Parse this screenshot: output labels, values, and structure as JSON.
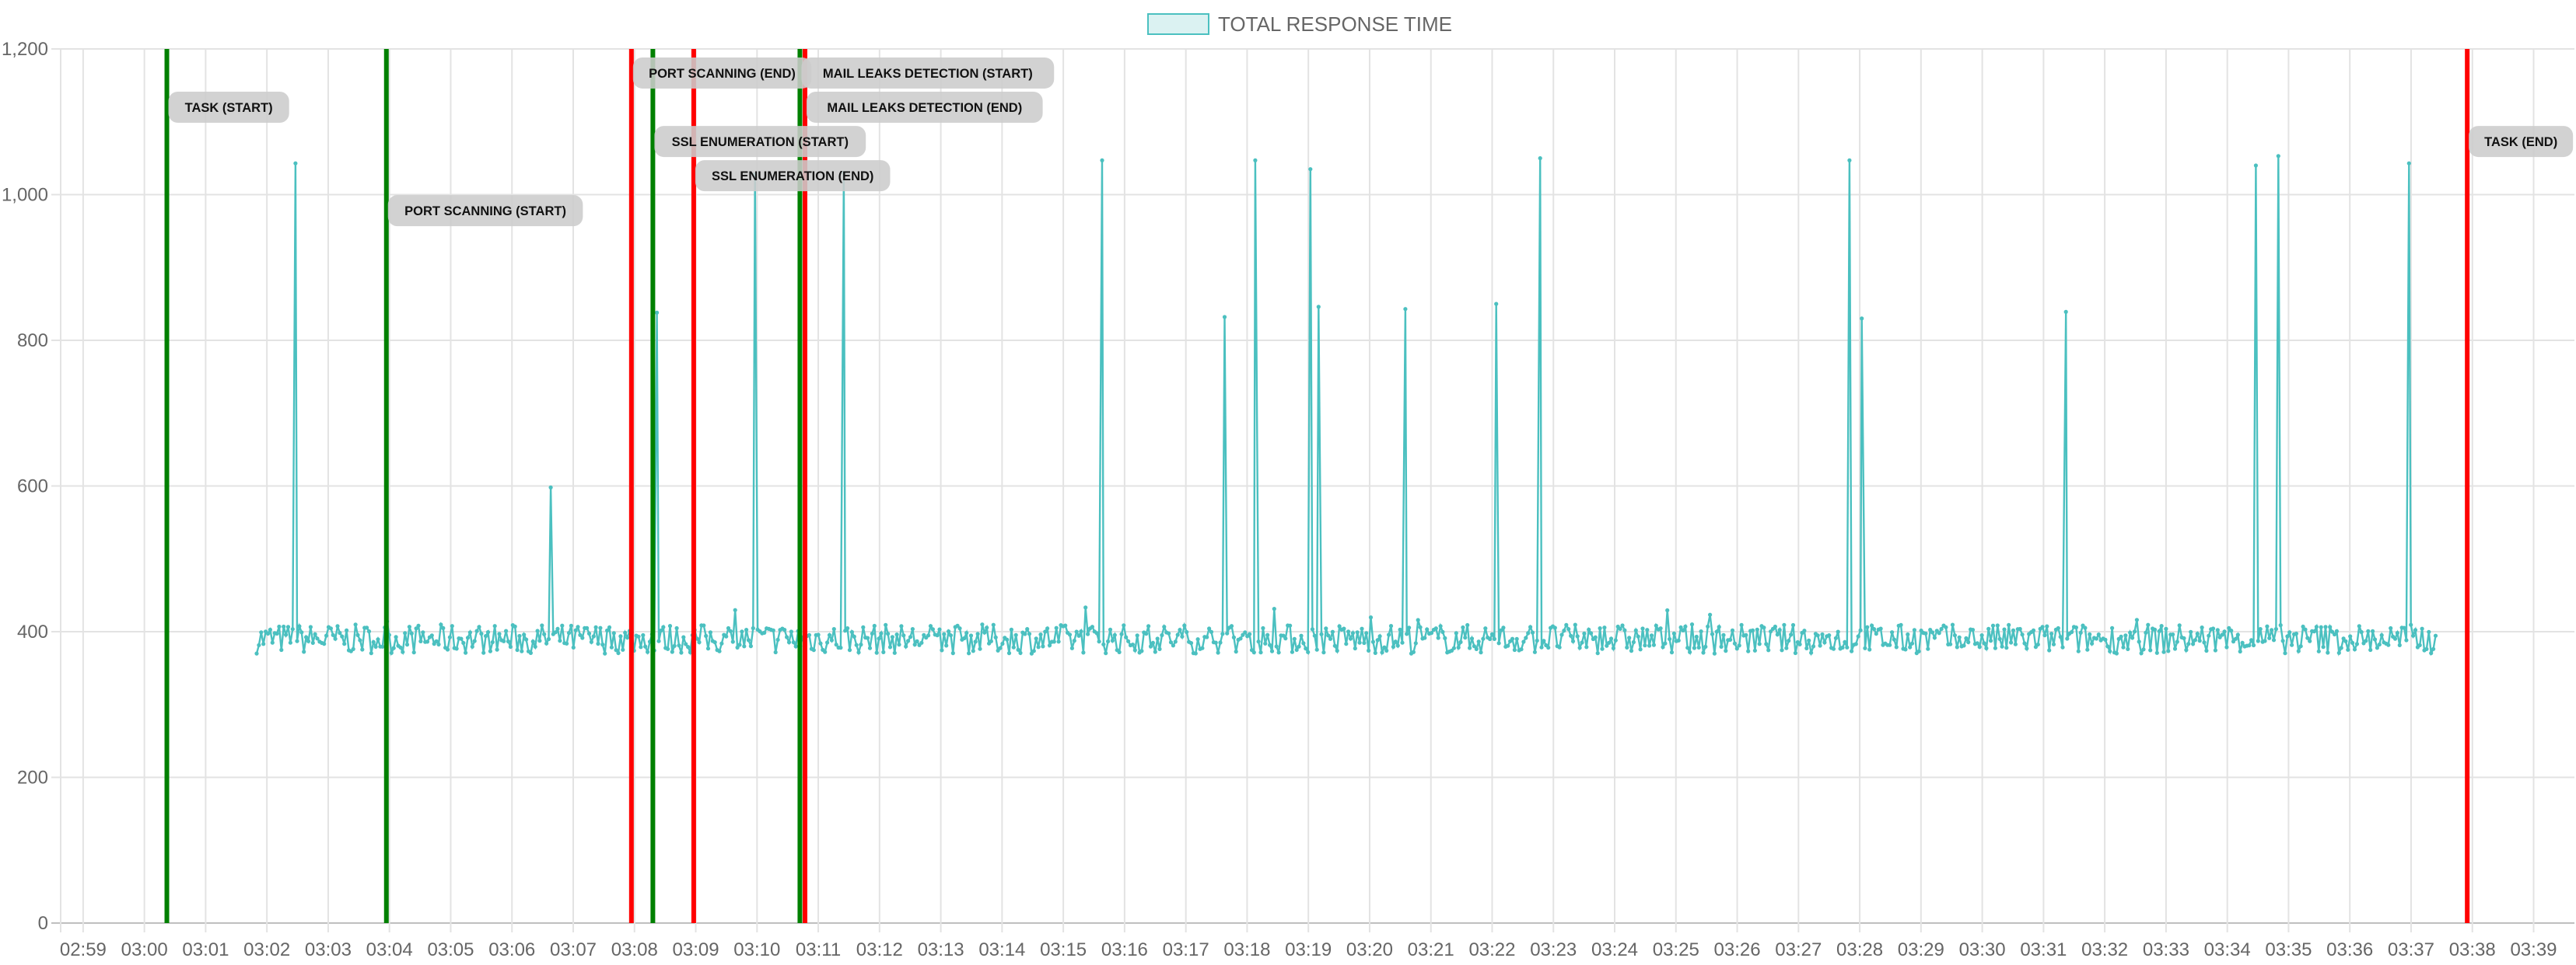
{
  "chart_data": {
    "type": "line",
    "legend": {
      "label": "TOTAL RESPONSE TIME",
      "position": "top-center"
    },
    "series": [
      {
        "name": "TOTAL RESPONSE TIME",
        "color": "#4bc0c0",
        "baseline": 390,
        "x_range": [
          "03:01:50",
          "03:37:25"
        ],
        "spikes": [
          {
            "x": "03:02:28",
            "y": 1043
          },
          {
            "x": "03:06:38",
            "y": 598
          },
          {
            "x": "03:08:22",
            "y": 838
          },
          {
            "x": "03:09:58",
            "y": 1028
          },
          {
            "x": "03:11:25",
            "y": 1030
          },
          {
            "x": "03:15:38",
            "y": 1047
          },
          {
            "x": "03:17:38",
            "y": 832
          },
          {
            "x": "03:18:08",
            "y": 1047
          },
          {
            "x": "03:19:02",
            "y": 1035
          },
          {
            "x": "03:19:10",
            "y": 846
          },
          {
            "x": "03:20:35",
            "y": 843
          },
          {
            "x": "03:22:04",
            "y": 850
          },
          {
            "x": "03:22:47",
            "y": 1050
          },
          {
            "x": "03:27:50",
            "y": 1047
          },
          {
            "x": "03:28:02",
            "y": 830
          },
          {
            "x": "03:31:22",
            "y": 839
          },
          {
            "x": "03:34:28",
            "y": 1040
          },
          {
            "x": "03:34:50",
            "y": 1053
          },
          {
            "x": "03:36:58",
            "y": 1043
          }
        ]
      }
    ],
    "x_axis": {
      "ticks": [
        "02:59",
        "03:00",
        "03:01",
        "03:02",
        "03:03",
        "03:04",
        "03:05",
        "03:06",
        "03:07",
        "03:08",
        "03:09",
        "03:10",
        "03:11",
        "03:12",
        "03:13",
        "03:14",
        "03:15",
        "03:16",
        "03:17",
        "03:18",
        "03:19",
        "03:20",
        "03:21",
        "03:22",
        "03:23",
        "03:24",
        "03:25",
        "03:26",
        "03:27",
        "03:28",
        "03:29",
        "03:30",
        "03:31",
        "03:32",
        "03:33",
        "03:34",
        "03:35",
        "03:36",
        "03:37",
        "03:38",
        "03:39"
      ],
      "range": [
        "02:58:38",
        "03:39:40"
      ]
    },
    "y_axis": {
      "ticks": [
        "0",
        "200",
        "400",
        "600",
        "800",
        "1,000",
        "1,200"
      ],
      "range": [
        0,
        1200
      ]
    },
    "grid": true,
    "annotations": [
      {
        "label": "TASK (START)",
        "x": "03:00:22",
        "color": "#008000",
        "y": 1120
      },
      {
        "label": "PORT SCANNING (START)",
        "x": "03:03:57",
        "color": "#008000",
        "y": 978
      },
      {
        "label": "PORT SCANNING (END)",
        "x": "03:07:57",
        "color": "#ff0000",
        "y": 1167
      },
      {
        "label": "SSL ENUMERATION (START)",
        "x": "03:08:18",
        "color": "#008000",
        "y": 1073
      },
      {
        "label": "SSL ENUMERATION (END)",
        "x": "03:08:58",
        "color": "#ff0000",
        "y": 1026
      },
      {
        "label": "MAIL LEAKS DETECTION (START)",
        "x": "03:10:42",
        "color": "#008000",
        "y": 1167
      },
      {
        "label": "MAIL LEAKS DETECTION (END)",
        "x": "03:10:47",
        "color": "#ff0000",
        "y": 1120
      },
      {
        "label": "TASK (END)",
        "x": "03:37:55",
        "color": "#ff0000",
        "y": 1073
      }
    ]
  }
}
